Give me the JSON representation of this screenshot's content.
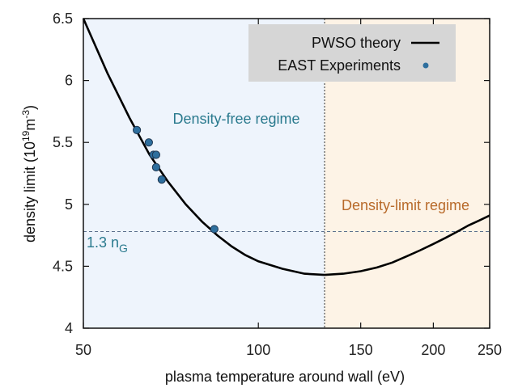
{
  "chart_data": {
    "type": "line",
    "title": "",
    "xlabel": "plasma temperature around wall (eV)",
    "ylabel": "density limit (10",
    "ylabel_sup1": "19",
    "ylabel_mid": "m",
    "ylabel_sup2": "-3",
    "ylabel_end": ")",
    "xscale": "log",
    "xlim": [
      50,
      250
    ],
    "ylim": [
      4,
      6.5
    ],
    "xticks": [
      50,
      100,
      150,
      200,
      250
    ],
    "xtick_labels": [
      "50",
      "100",
      "150",
      "200",
      "250"
    ],
    "yticks": [
      4,
      4.5,
      5,
      5.5,
      6,
      6.5
    ],
    "ytick_labels": [
      "4",
      "4.5",
      "5",
      "5.5",
      "6",
      "6.5"
    ],
    "series": [
      {
        "name": "PWSO theory",
        "kind": "line",
        "color": "#000000",
        "x": [
          50,
          55,
          60,
          65,
          70,
          75,
          80,
          85,
          90,
          95,
          100,
          110,
          120,
          130,
          140,
          150,
          160,
          170,
          180,
          190,
          200,
          210,
          220,
          230,
          240,
          250
        ],
        "values": [
          6.5,
          6.06,
          5.7,
          5.4,
          5.18,
          5.0,
          4.86,
          4.75,
          4.66,
          4.59,
          4.54,
          4.48,
          4.44,
          4.43,
          4.44,
          4.46,
          4.49,
          4.53,
          4.58,
          4.63,
          4.68,
          4.73,
          4.78,
          4.83,
          4.87,
          4.91
        ]
      },
      {
        "name": "EAST Experiments",
        "kind": "scatter",
        "color": "#2e6f9e",
        "x": [
          61.8,
          64.8,
          66.0,
          66.7,
          66.7,
          68.2,
          84.0
        ],
        "values": [
          5.6,
          5.5,
          5.4,
          5.4,
          5.3,
          5.2,
          4.8
        ]
      }
    ],
    "reference_line": {
      "y": 4.78,
      "label": "1.3 n",
      "label_sub": "G",
      "color": "#5a6e8c"
    },
    "boundary_x": 130,
    "regions": [
      {
        "label": "Density-free regime",
        "x_from": 50,
        "x_to": 130,
        "fill": "#eef4fc",
        "text_color": "#2a7a8e"
      },
      {
        "label": "Density-limit regime",
        "x_from": 130,
        "x_to": 250,
        "fill": "#fdf3e6",
        "text_color": "#b86a2a"
      }
    ],
    "legend_position": "top-right",
    "legend": [
      {
        "label": "PWSO theory",
        "marker": "line",
        "color": "#000000"
      },
      {
        "label": "EAST Experiments",
        "marker": "dot",
        "color": "#2e6f9e"
      }
    ]
  }
}
